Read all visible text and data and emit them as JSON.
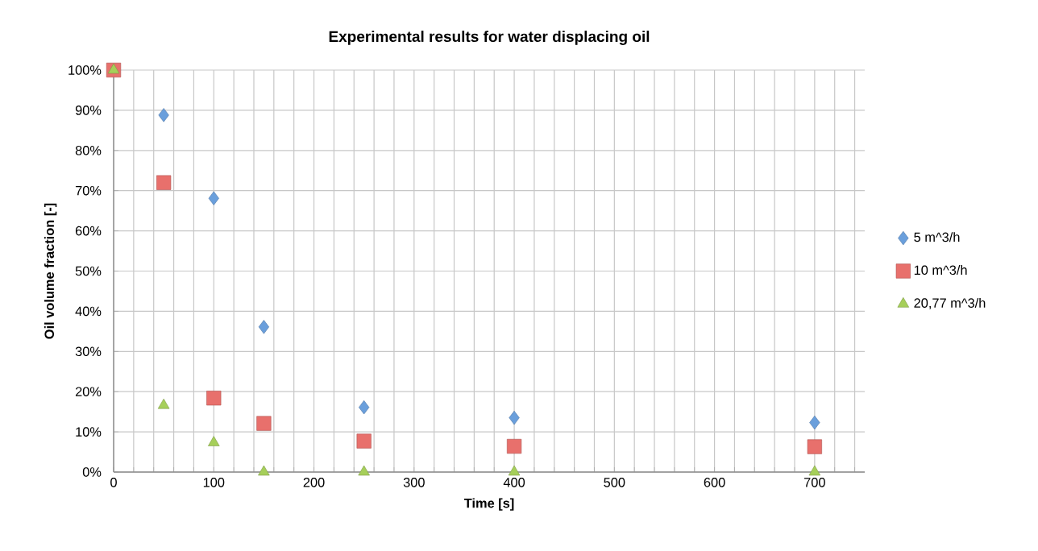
{
  "chart_data": {
    "type": "scatter",
    "title": "Experimental results for water displacing oil",
    "xlabel": "Time [s]",
    "ylabel": "Oil volume fraction [-]",
    "xlim": [
      0,
      750
    ],
    "ylim": [
      0,
      100
    ],
    "xticks": [
      0,
      {
        "value": 20,
        "label": null
      },
      {
        "value": 40,
        "label": null
      },
      {
        "value": 60,
        "label": null
      },
      {
        "value": 80,
        "label": null
      },
      100,
      {
        "value": 120,
        "label": null
      },
      {
        "value": 140,
        "label": null
      },
      {
        "value": 160,
        "label": null
      },
      {
        "value": 180,
        "label": null
      },
      200,
      {
        "value": 220,
        "label": null
      },
      {
        "value": 240,
        "label": null
      },
      {
        "value": 260,
        "label": null
      },
      {
        "value": 280,
        "label": null
      },
      300,
      {
        "value": 320,
        "label": null
      },
      {
        "value": 340,
        "label": null
      },
      {
        "value": 360,
        "label": null
      },
      {
        "value": 380,
        "label": null
      },
      400,
      {
        "value": 420,
        "label": null
      },
      {
        "value": 440,
        "label": null
      },
      {
        "value": 460,
        "label": null
      },
      {
        "value": 480,
        "label": null
      },
      500,
      {
        "value": 520,
        "label": null
      },
      {
        "value": 540,
        "label": null
      },
      {
        "value": 560,
        "label": null
      },
      {
        "value": 580,
        "label": null
      },
      600,
      {
        "value": 620,
        "label": null
      },
      {
        "value": 640,
        "label": null
      },
      {
        "value": 660,
        "label": null
      },
      {
        "value": 680,
        "label": null
      },
      700,
      {
        "value": 720,
        "label": null
      },
      {
        "value": 740,
        "label": null
      }
    ],
    "yticks": [
      {
        "value": 0,
        "label": "0%"
      },
      {
        "value": 10,
        "label": "10%"
      },
      {
        "value": 20,
        "label": "20%"
      },
      {
        "value": 30,
        "label": "30%"
      },
      {
        "value": 40,
        "label": "40%"
      },
      {
        "value": 50,
        "label": "50%"
      },
      {
        "value": 60,
        "label": "60%"
      },
      {
        "value": 70,
        "label": "70%"
      },
      {
        "value": 80,
        "label": "80%"
      },
      {
        "value": 90,
        "label": "90%"
      },
      {
        "value": 100,
        "label": "100%"
      }
    ],
    "grid": true,
    "legend": "right",
    "series": [
      {
        "name": "5 m^3/h",
        "color": "#6a9fdc",
        "marker": "diamond",
        "x": [
          50,
          100,
          150,
          250,
          400,
          700
        ],
        "values": [
          88.8,
          68.1,
          36.1,
          16.1,
          13.5,
          12.3
        ]
      },
      {
        "name": "10 m^3/h",
        "color": "#e8706c",
        "marker": "square",
        "x": [
          0,
          50,
          100,
          150,
          250,
          400,
          700
        ],
        "values": [
          100,
          72.0,
          18.4,
          12.1,
          7.7,
          6.4,
          6.3
        ]
      },
      {
        "name": "20,77 m^3/h",
        "color": "#a6cf5a",
        "marker": "triangle",
        "x": [
          0,
          50,
          100,
          150,
          250,
          400,
          700
        ],
        "values": [
          100,
          16.6,
          7.3,
          0,
          0,
          0,
          0
        ]
      }
    ]
  }
}
